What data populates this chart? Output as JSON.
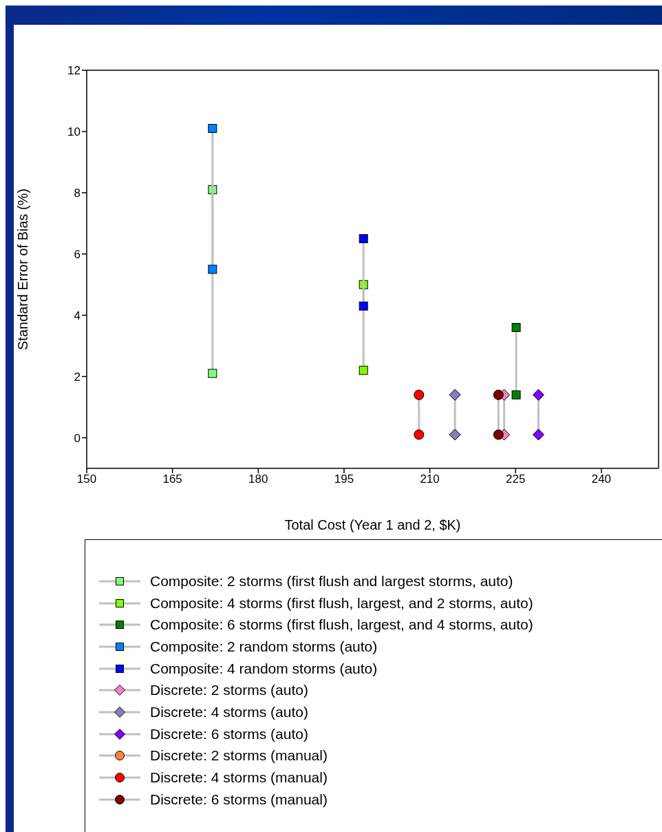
{
  "chart_data": {
    "type": "line",
    "xlabel": "Total Cost (Year 1 and 2, $K)",
    "ylabel": "Standard Error of Bias (%)",
    "xlim": [
      150,
      250
    ],
    "xticks": [
      150,
      165,
      180,
      195,
      210,
      225,
      240
    ],
    "ylim": [
      -1,
      12
    ],
    "yticks": [
      0,
      2,
      4,
      6,
      8,
      10,
      12
    ],
    "legend": "bottom",
    "series": [
      {
        "name": "Composite: 2 storms (first flush and largest storms, auto)",
        "color": "#80ff80",
        "marker": "square",
        "x": [
          172,
          172
        ],
        "values": [
          8.1,
          2.1
        ]
      },
      {
        "name": "Composite: 4 storms (first flush, largest, and 2 storms, auto)",
        "color": "#80ff00",
        "marker": "square",
        "x": [
          198.4,
          198.4
        ],
        "values": [
          5.0,
          2.2
        ]
      },
      {
        "name": "Composite: 6 storms (first flush, largest, and 4 storms, auto)",
        "color": "#008000",
        "marker": "square",
        "x": [
          225.1,
          225.1
        ],
        "values": [
          3.6,
          1.4
        ]
      },
      {
        "name": "Composite: 2 random storms (auto)",
        "color": "#0080ff",
        "marker": "square",
        "x": [
          172,
          172
        ],
        "values": [
          10.1,
          5.5
        ]
      },
      {
        "name": "Composite: 4 random storms (auto)",
        "color": "#0000ff",
        "marker": "square",
        "x": [
          198.4,
          198.4
        ],
        "values": [
          6.5,
          4.3
        ]
      },
      {
        "name": "Discrete: 2 storms (auto)",
        "color": "#ff80c0",
        "marker": "diamond",
        "x": [
          223,
          223
        ],
        "values": [
          1.4,
          0.1
        ]
      },
      {
        "name": "Discrete: 4 storms (auto)",
        "color": "#8080c0",
        "marker": "diamond",
        "x": [
          214.4,
          214.4
        ],
        "values": [
          1.4,
          0.1
        ]
      },
      {
        "name": "Discrete: 6 storms (auto)",
        "color": "#8000ff",
        "marker": "diamond",
        "x": [
          229,
          229
        ],
        "values": [
          1.4,
          0.1
        ]
      },
      {
        "name": "Discrete: 2 storms (manual)",
        "color": "#ff8040",
        "marker": "circle"
      },
      {
        "name": "Discrete: 4 storms (manual)",
        "color": "#ff0000",
        "marker": "circle",
        "x": [
          208.1,
          208.1
        ],
        "values": [
          1.4,
          0.1
        ]
      },
      {
        "name": "Discrete: 6 storms (manual)",
        "color": "#800000",
        "marker": "circle",
        "x": [
          222,
          222
        ],
        "values": [
          1.4,
          0.1
        ]
      }
    ]
  }
}
